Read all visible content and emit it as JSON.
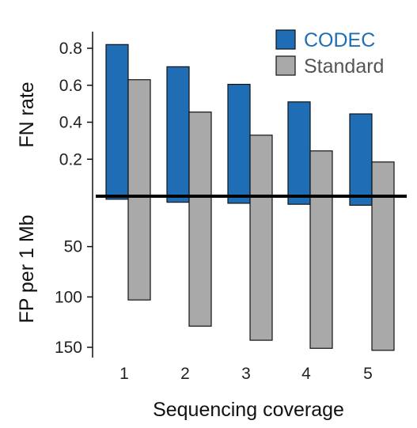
{
  "chart_data": {
    "type": "bar",
    "xlabel": "Sequencing coverage",
    "categories": [
      "1",
      "2",
      "3",
      "4",
      "5"
    ],
    "panels": [
      {
        "ylabel": "FN rate",
        "yticks": [
          "0.2",
          "0.4",
          "0.6",
          "0.8"
        ],
        "ylim": [
          0,
          0.88
        ],
        "series": [
          {
            "name": "CODEC",
            "values": [
              0.82,
              0.7,
              0.605,
              0.51,
              0.445
            ]
          },
          {
            "name": "Standard",
            "values": [
              0.63,
              0.455,
              0.33,
              0.245,
              0.185
            ]
          }
        ]
      },
      {
        "ylabel": "FP per 1 Mb",
        "yticks": [
          "50",
          "100",
          "150"
        ],
        "ylim": [
          0,
          160
        ],
        "inverted": true,
        "series": [
          {
            "name": "CODEC",
            "values": [
              3,
              6,
              7,
              8,
              9
            ]
          },
          {
            "name": "Standard",
            "values": [
              103,
              129,
              143,
              151,
              153
            ]
          }
        ]
      }
    ],
    "legend": {
      "placement": "top-right",
      "items": [
        {
          "label": "CODEC",
          "color": "#1f6db5",
          "text_color": "#1f6db5"
        },
        {
          "label": "Standard",
          "color": "#a9a9a9",
          "text_color": "#555555"
        }
      ]
    },
    "colors": {
      "codec": "#1f6db5",
      "standard": "#a9a9a9",
      "outline": "#111111"
    }
  }
}
